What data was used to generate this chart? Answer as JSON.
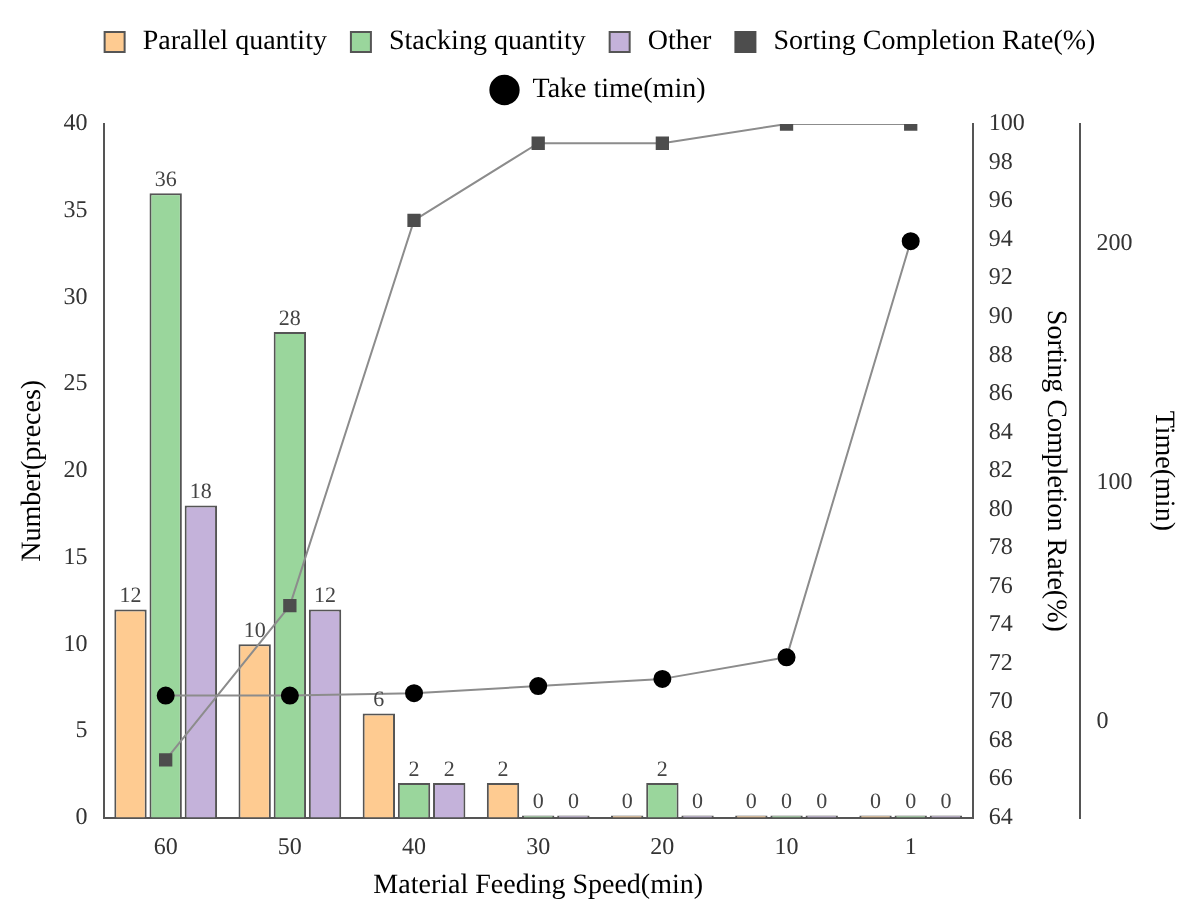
{
  "chart_data": {
    "type": "bar",
    "xlabel": "Material Feeding Speed(min)",
    "ylabel": "Number(preces)",
    "y2label": "Sorting Completion Rate(%)",
    "y3label": "Time(min)",
    "categories": [
      "60",
      "50",
      "40",
      "30",
      "20",
      "10",
      "1"
    ],
    "series": [
      {
        "name": "Parallel quantity",
        "color": "#fecb91",
        "values": [
          12,
          10,
          6,
          2,
          0,
          0,
          0
        ],
        "value_labels": [
          "12",
          "10",
          "6",
          "2",
          "0",
          "0",
          "0"
        ]
      },
      {
        "name": "Stacking quantity",
        "color": "#9ad69c",
        "values": [
          36,
          28,
          2,
          0,
          2,
          0,
          0
        ],
        "value_labels": [
          "36",
          "28",
          "2",
          "0",
          "2",
          "0",
          "0"
        ]
      },
      {
        "name": "Other",
        "color": "#c4b2da",
        "values": [
          18,
          12,
          2,
          0,
          0,
          0,
          0
        ],
        "value_labels": [
          "18",
          "12",
          "2",
          "0",
          "0",
          "0",
          "0"
        ]
      },
      {
        "name": "Sorting Completion Rate(%)",
        "type": "line",
        "axis": "y2",
        "marker": "square",
        "color": "#4d4d4d",
        "values": [
          67,
          75,
          95,
          99,
          99,
          100,
          100
        ]
      },
      {
        "name": "Take time(min)",
        "type": "line",
        "axis": "y3",
        "marker": "circle",
        "color": "#000000",
        "values": [
          11,
          11,
          12,
          15,
          18,
          27,
          201
        ]
      }
    ],
    "ylim": [
      0,
      40
    ],
    "yticks": [
      0,
      5,
      10,
      15,
      20,
      25,
      30,
      35,
      40
    ],
    "y2lim": [
      64,
      100
    ],
    "y2ticks": [
      64,
      66,
      68,
      70,
      72,
      74,
      76,
      78,
      80,
      82,
      84,
      86,
      88,
      90,
      92,
      94,
      96,
      98,
      100
    ],
    "y3lim": [
      -40,
      250
    ],
    "y3ticks": [
      0,
      100,
      200
    ],
    "grid": false,
    "legend": "top",
    "line_style": "solid"
  }
}
